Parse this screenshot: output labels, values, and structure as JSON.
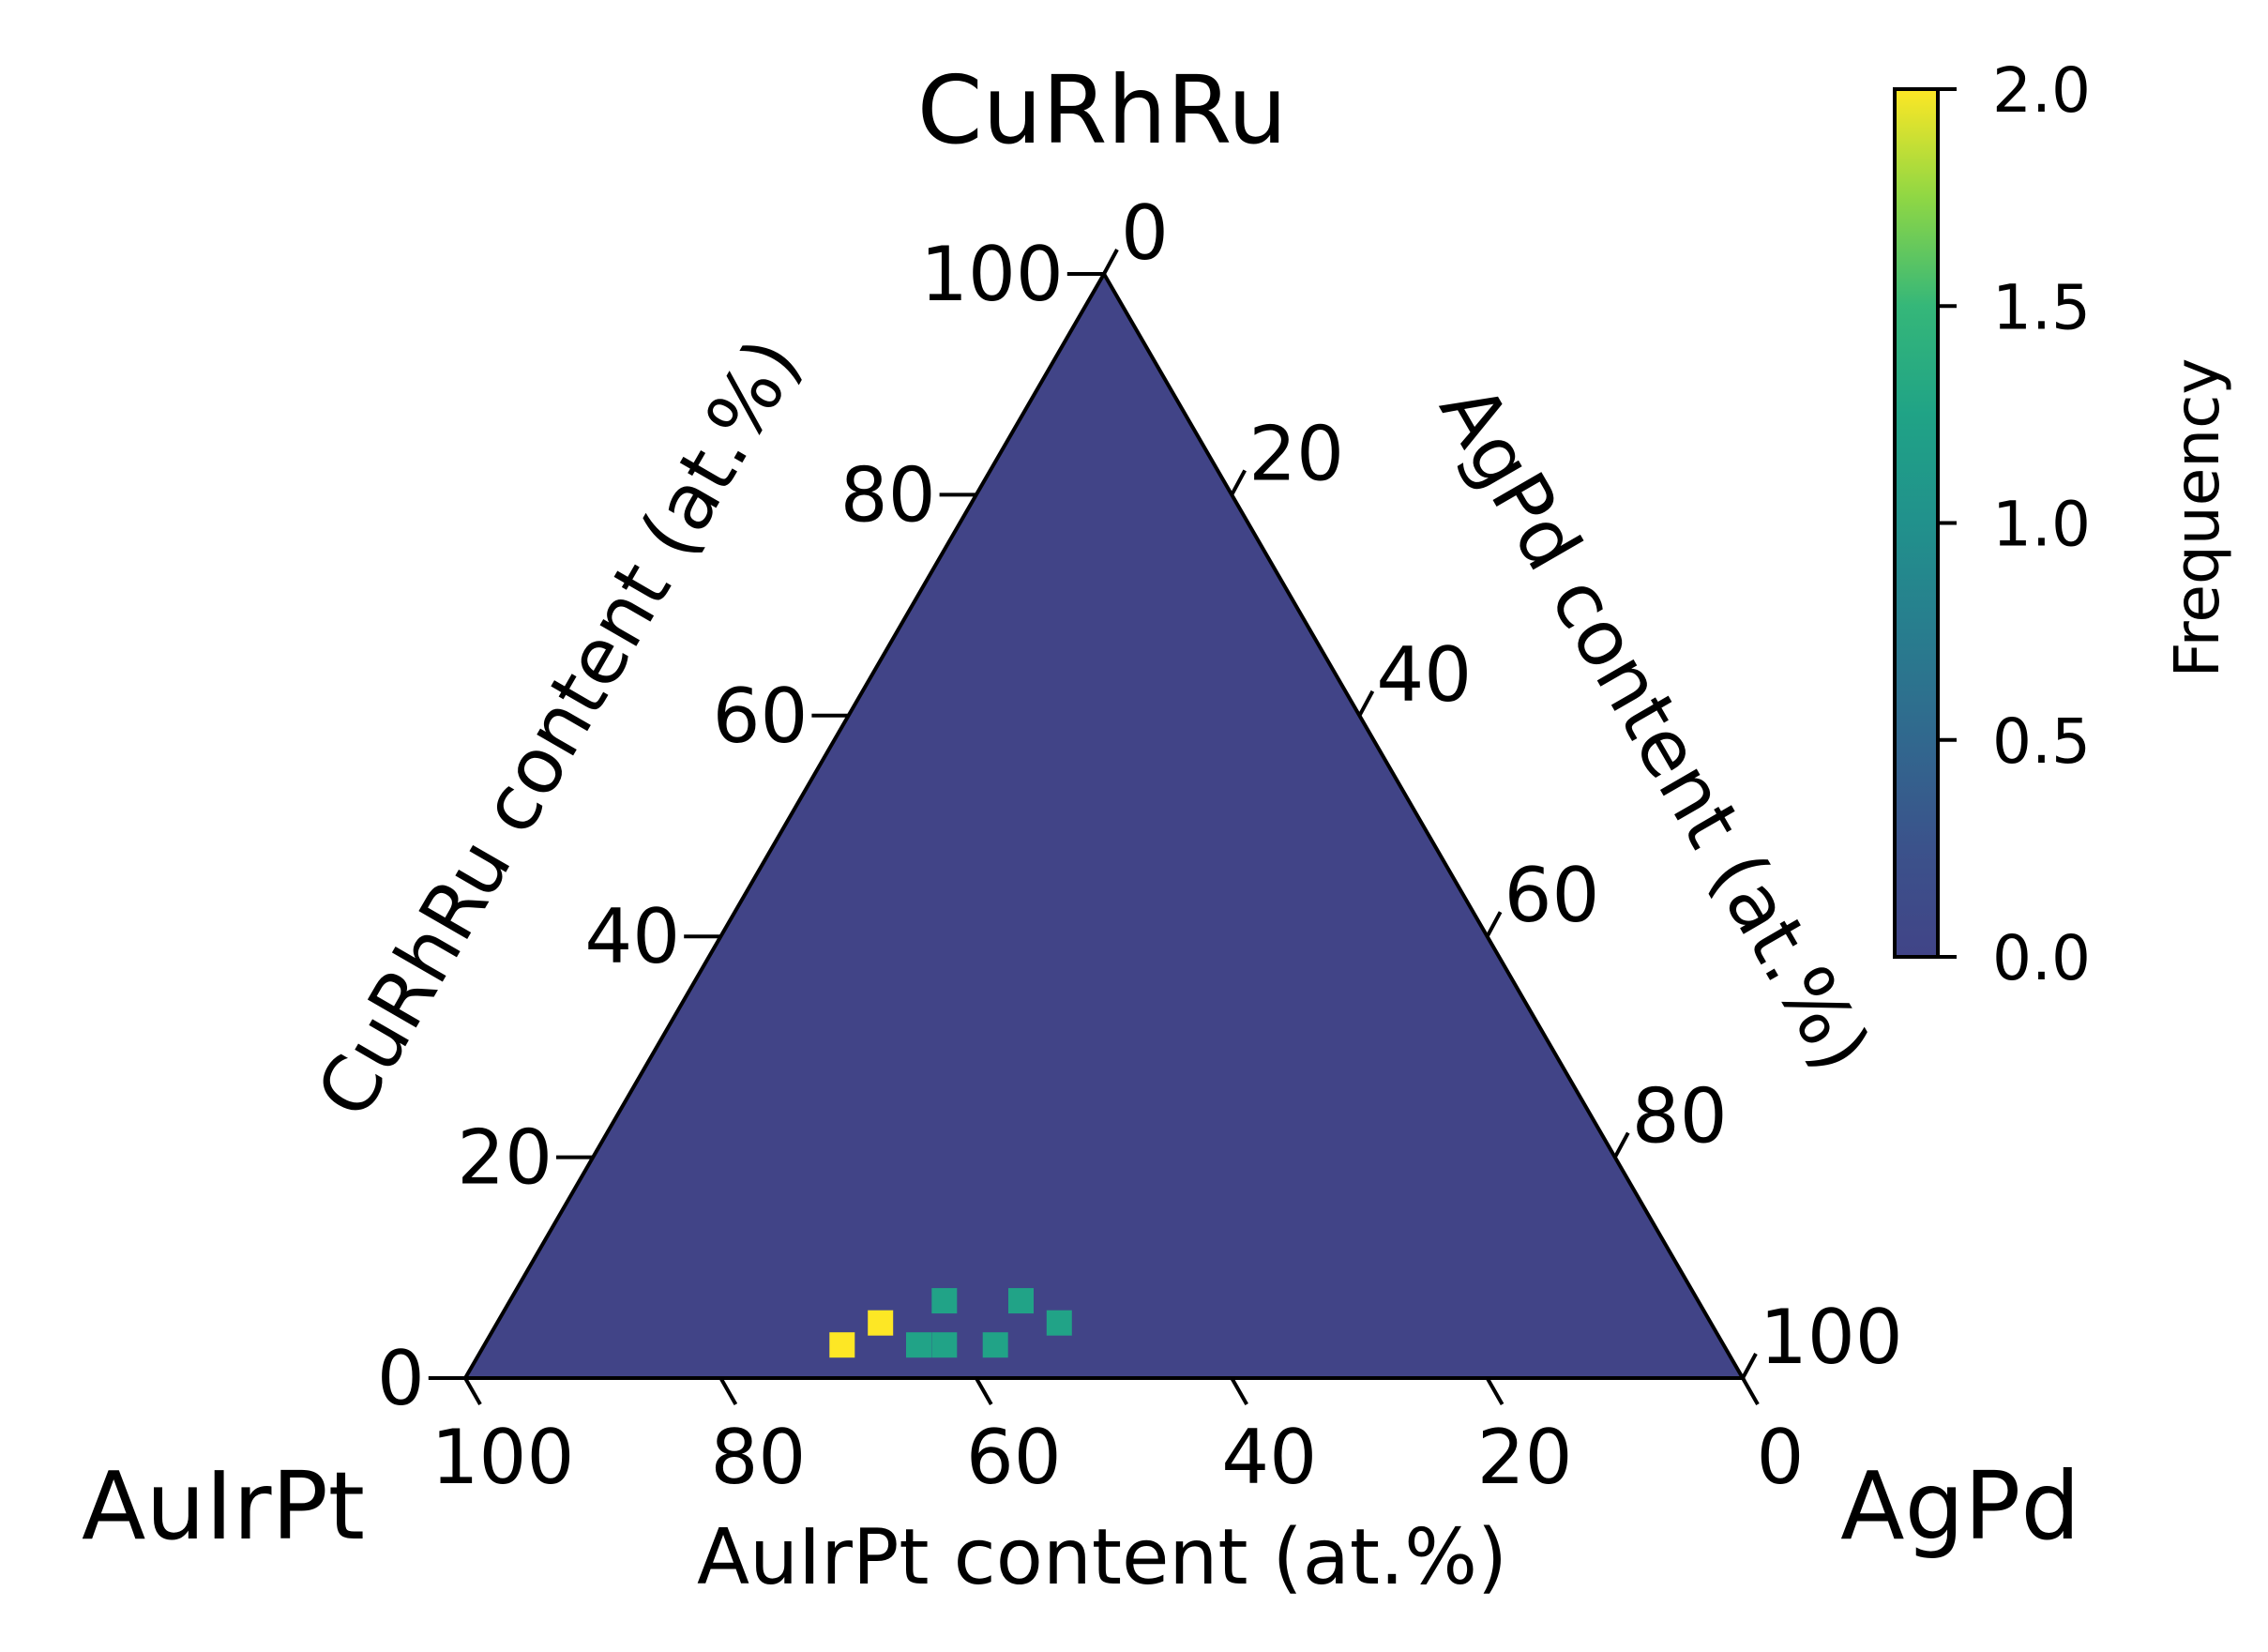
{
  "chart_data": {
    "type": "heatmap",
    "plot_kind": "ternary",
    "corners": {
      "top": "CuRhRu",
      "left": "AuIrPt",
      "right": "AgPd"
    },
    "axes": {
      "left": {
        "label": "CuRhRu content (at.%)",
        "range": [
          0,
          100
        ],
        "ticks": [
          "0",
          "20",
          "40",
          "60",
          "80",
          "100"
        ]
      },
      "right": {
        "label": "AgPd content (at.%)",
        "range": [
          0,
          100
        ],
        "ticks": [
          "0",
          "20",
          "40",
          "60",
          "80",
          "100"
        ]
      },
      "bottom": {
        "label": "AuIrPt content (at.%)",
        "range": [
          0,
          100
        ],
        "ticks": [
          "100",
          "80",
          "60",
          "40",
          "20",
          "0"
        ]
      }
    },
    "colorbar": {
      "label": "Frequency",
      "ticks": [
        "0.0",
        "0.5",
        "1.0",
        "1.5",
        "2.0"
      ],
      "range": [
        0,
        2
      ],
      "colormap": "viridis"
    },
    "bin_size": 2,
    "background_value": 0,
    "cells": [
      {
        "auirpt": 69,
        "cuurhru": 3,
        "value": 2
      },
      {
        "auirpt": 65,
        "cuurhru": 5,
        "value": 2
      },
      {
        "auirpt": 63,
        "cuurhru": 3,
        "value": 1
      },
      {
        "auirpt": 61,
        "cuurhru": 3,
        "value": 1
      },
      {
        "auirpt": 57,
        "cuurhru": 3,
        "value": 1
      },
      {
        "auirpt": 59,
        "cuurhru": 7,
        "value": 1
      },
      {
        "auirpt": 53,
        "cuurhru": 7,
        "value": 1
      },
      {
        "auirpt": 51,
        "cuurhru": 5,
        "value": 1
      }
    ]
  }
}
